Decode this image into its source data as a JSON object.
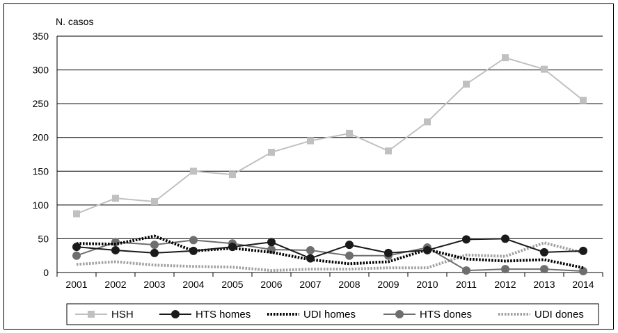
{
  "chart_data": {
    "type": "line",
    "ylabel": "N. casos",
    "x": [
      "2001",
      "2002",
      "2003",
      "2004",
      "2005",
      "2006",
      "2007",
      "2008",
      "2009",
      "2010",
      "2011",
      "2012",
      "2013",
      "2014"
    ],
    "ylim": [
      0,
      350
    ],
    "yticks": [
      "0",
      "50",
      "100",
      "150",
      "200",
      "250",
      "300",
      "350"
    ],
    "grid": true,
    "legend_position": "bottom",
    "series": [
      {
        "name": "HSH",
        "values": [
          87,
          110,
          105,
          150,
          145,
          178,
          195,
          206,
          180,
          223,
          279,
          318,
          301,
          255
        ],
        "color": "#c0c0c0",
        "marker": "square",
        "dash": "solid"
      },
      {
        "name": "HTS homes",
        "values": [
          38,
          33,
          29,
          32,
          38,
          45,
          21,
          41,
          29,
          33,
          49,
          50,
          30,
          32
        ],
        "color": "#1a1a1a",
        "marker": "circle",
        "dash": "solid"
      },
      {
        "name": "UDI homes",
        "values": [
          43,
          42,
          54,
          32,
          36,
          30,
          19,
          13,
          16,
          34,
          20,
          17,
          19,
          7
        ],
        "color": "#000000",
        "marker": "none",
        "dash": "dotted"
      },
      {
        "name": "HTS dones",
        "values": [
          25,
          45,
          41,
          48,
          43,
          34,
          33,
          25,
          25,
          37,
          3,
          5,
          5,
          2
        ],
        "color": "#6e6e6e",
        "marker": "circle",
        "dash": "solid"
      },
      {
        "name": "UDI dones",
        "values": [
          12,
          16,
          11,
          9,
          8,
          3,
          5,
          5,
          7,
          7,
          26,
          24,
          44,
          29
        ],
        "color": "#a0a0a0",
        "marker": "none",
        "dash": "dotted"
      }
    ]
  }
}
